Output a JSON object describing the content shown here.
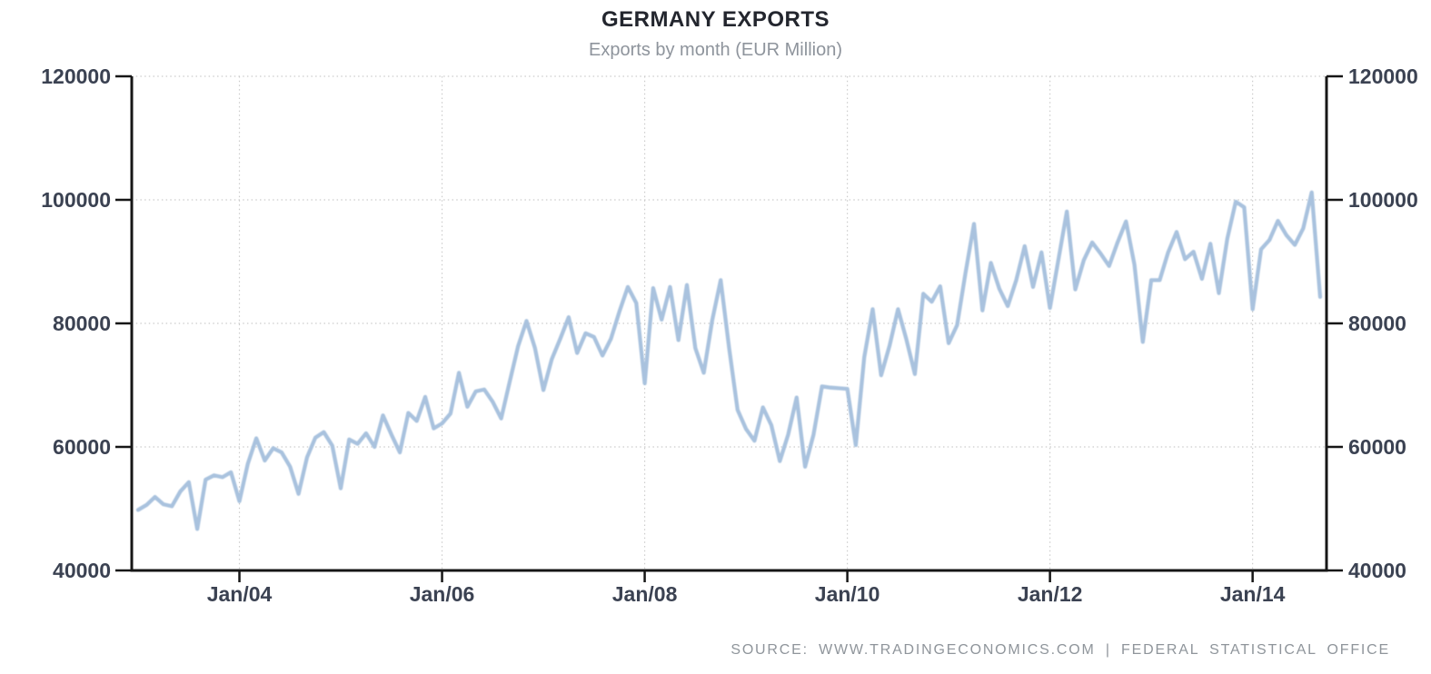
{
  "title": "GERMANY EXPORTS",
  "subtitle": "Exports by month (EUR Million)",
  "source": {
    "text": "SOURCE: WWW.TRADINGECONOMICS.COM | FEDERAL STATISTICAL OFFICE"
  },
  "colors": {
    "line": "#a9c2de",
    "axis": "#161616",
    "grid": "#cccccc",
    "tick_label": "#3b4252",
    "title": "#23262e",
    "subtitle": "#8e949c",
    "source": "#8f959b",
    "background": "#ffffff"
  },
  "chart_data": {
    "type": "line",
    "title": "GERMANY EXPORTS",
    "subtitle": "Exports by month (EUR Million)",
    "ylabel": "",
    "xlabel": "",
    "ylim": [
      40000,
      120000
    ],
    "y_ticks": [
      40000,
      60000,
      80000,
      100000,
      120000
    ],
    "y_tick_labels": [
      "40000",
      "60000",
      "80000",
      "100000",
      "120000"
    ],
    "y_axis_sides": [
      "left",
      "right"
    ],
    "grid": "dotted",
    "legend": "none",
    "frequency": "monthly",
    "x_ticks": [
      {
        "label": "Jan/04",
        "month": "2004-01"
      },
      {
        "label": "Jan/06",
        "month": "2006-01"
      },
      {
        "label": "Jan/08",
        "month": "2008-01"
      },
      {
        "label": "Jan/10",
        "month": "2010-01"
      },
      {
        "label": "Jan/12",
        "month": "2012-01"
      },
      {
        "label": "Jan/14",
        "month": "2014-01"
      }
    ],
    "x_months": [
      "2003-01",
      "2003-02",
      "2003-03",
      "2003-04",
      "2003-05",
      "2003-06",
      "2003-07",
      "2003-08",
      "2003-09",
      "2003-10",
      "2003-11",
      "2003-12",
      "2004-01",
      "2004-02",
      "2004-03",
      "2004-04",
      "2004-05",
      "2004-06",
      "2004-07",
      "2004-08",
      "2004-09",
      "2004-10",
      "2004-11",
      "2004-12",
      "2005-01",
      "2005-02",
      "2005-03",
      "2005-04",
      "2005-05",
      "2005-06",
      "2005-07",
      "2005-08",
      "2005-09",
      "2005-10",
      "2005-11",
      "2005-12",
      "2006-01",
      "2006-02",
      "2006-03",
      "2006-04",
      "2006-05",
      "2006-06",
      "2006-07",
      "2006-08",
      "2006-09",
      "2006-10",
      "2006-11",
      "2006-12",
      "2007-01",
      "2007-02",
      "2007-03",
      "2007-04",
      "2007-05",
      "2007-06",
      "2007-07",
      "2007-08",
      "2007-09",
      "2007-10",
      "2007-11",
      "2007-12",
      "2008-01",
      "2008-02",
      "2008-03",
      "2008-04",
      "2008-05",
      "2008-06",
      "2008-07",
      "2008-08",
      "2008-09",
      "2008-10",
      "2008-11",
      "2008-12",
      "2009-01",
      "2009-02",
      "2009-03",
      "2009-04",
      "2009-05",
      "2009-06",
      "2009-07",
      "2009-08",
      "2009-09",
      "2009-10",
      "2009-11",
      "2009-12",
      "2010-01",
      "2010-02",
      "2010-03",
      "2010-04",
      "2010-05",
      "2010-06",
      "2010-07",
      "2010-08",
      "2010-09",
      "2010-10",
      "2010-11",
      "2010-12",
      "2011-01",
      "2011-02",
      "2011-03",
      "2011-04",
      "2011-05",
      "2011-06",
      "2011-07",
      "2011-08",
      "2011-09",
      "2011-10",
      "2011-11",
      "2011-12",
      "2012-01",
      "2012-02",
      "2012-03",
      "2012-04",
      "2012-05",
      "2012-06",
      "2012-07",
      "2012-08",
      "2012-09",
      "2012-10",
      "2012-11",
      "2012-12",
      "2013-01",
      "2013-02",
      "2013-03",
      "2013-04",
      "2013-05",
      "2013-06",
      "2013-07",
      "2013-08",
      "2013-09",
      "2013-10",
      "2013-11",
      "2013-12",
      "2014-01",
      "2014-02",
      "2014-03",
      "2014-04",
      "2014-05",
      "2014-06",
      "2014-07",
      "2014-08",
      "2014-09"
    ],
    "values": [
      49800,
      50600,
      51900,
      50700,
      50400,
      52800,
      54300,
      46700,
      54700,
      55400,
      55100,
      55900,
      51200,
      57300,
      61400,
      57800,
      59800,
      59100,
      56800,
      52400,
      58300,
      61500,
      62400,
      60200,
      53300,
      61200,
      60500,
      62200,
      60000,
      65100,
      62000,
      59100,
      65500,
      64200,
      68100,
      63000,
      63800,
      65400,
      72000,
      66500,
      69000,
      69300,
      67300,
      64600,
      70500,
      76300,
      80400,
      76000,
      69200,
      74200,
      77500,
      81000,
      75200,
      78400,
      77800,
      74800,
      77500,
      81900,
      85900,
      83300,
      70300,
      85700,
      80600,
      85900,
      77300,
      86200,
      76000,
      72000,
      80500,
      87000,
      76000,
      66000,
      62900,
      61000,
      66400,
      63500,
      57700,
      62000,
      68000,
      56800,
      62000,
      69800,
      69600,
      69500,
      69400,
      60300,
      74500,
      82300,
      71600,
      76400,
      82300,
      77400,
      71800,
      84800,
      83500,
      86000,
      76800,
      79700,
      88200,
      96100,
      82100,
      89800,
      85600,
      82800,
      87000,
      92500,
      85900,
      91500,
      82500,
      90300,
      98100,
      85500,
      90200,
      93100,
      91300,
      89300,
      93100,
      96500,
      89500,
      77000,
      87000,
      87000,
      91500,
      94800,
      90400,
      91600,
      87200,
      92900,
      84900,
      93700,
      99700,
      98800,
      82300,
      92000,
      93500,
      96600,
      94300,
      92700,
      95400,
      101200,
      84300
    ]
  }
}
